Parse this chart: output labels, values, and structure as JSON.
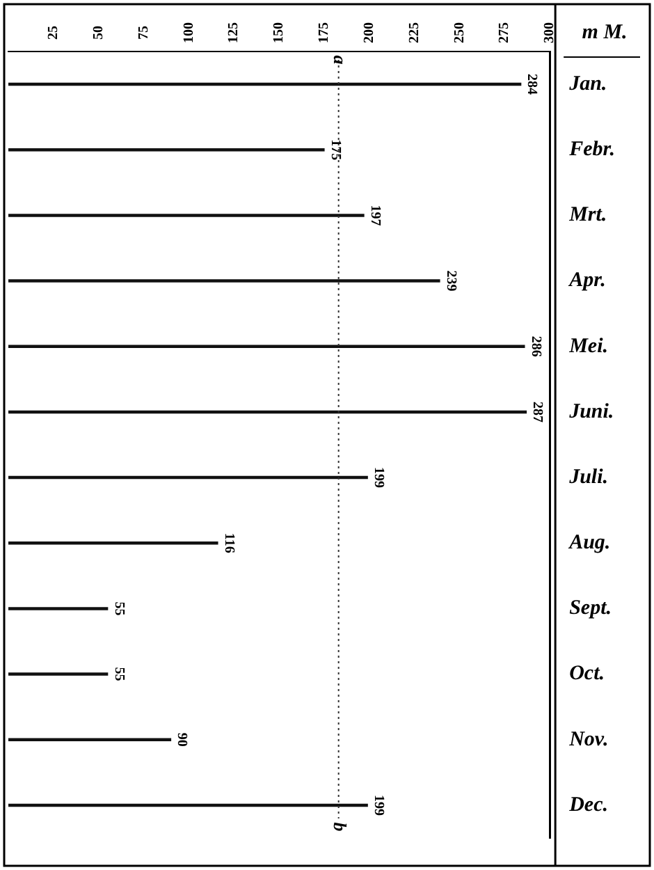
{
  "chart_data": {
    "type": "bar",
    "orientation": "horizontal",
    "xlabel": "m M.",
    "categories": [
      "Jan.",
      "Febr.",
      "Mrt.",
      "Apr.",
      "Mei.",
      "Juni.",
      "Juli.",
      "Aug.",
      "Sept.",
      "Oct.",
      "Nov.",
      "Dec."
    ],
    "values": [
      284,
      175,
      197,
      239,
      286,
      287,
      199,
      116,
      55,
      55,
      90,
      199
    ],
    "color": "#111111",
    "data_labels": true,
    "xlim": [
      0,
      300
    ],
    "xticks": [
      25,
      50,
      75,
      100,
      125,
      150,
      175,
      200,
      225,
      250,
      275,
      300
    ],
    "ref_lines": [
      {
        "axis": "x",
        "value": 183,
        "label": "a",
        "line_style": "dotted",
        "color": "#333333"
      }
    ],
    "annotations": [
      "b"
    ],
    "grid": false,
    "legend": false
  }
}
